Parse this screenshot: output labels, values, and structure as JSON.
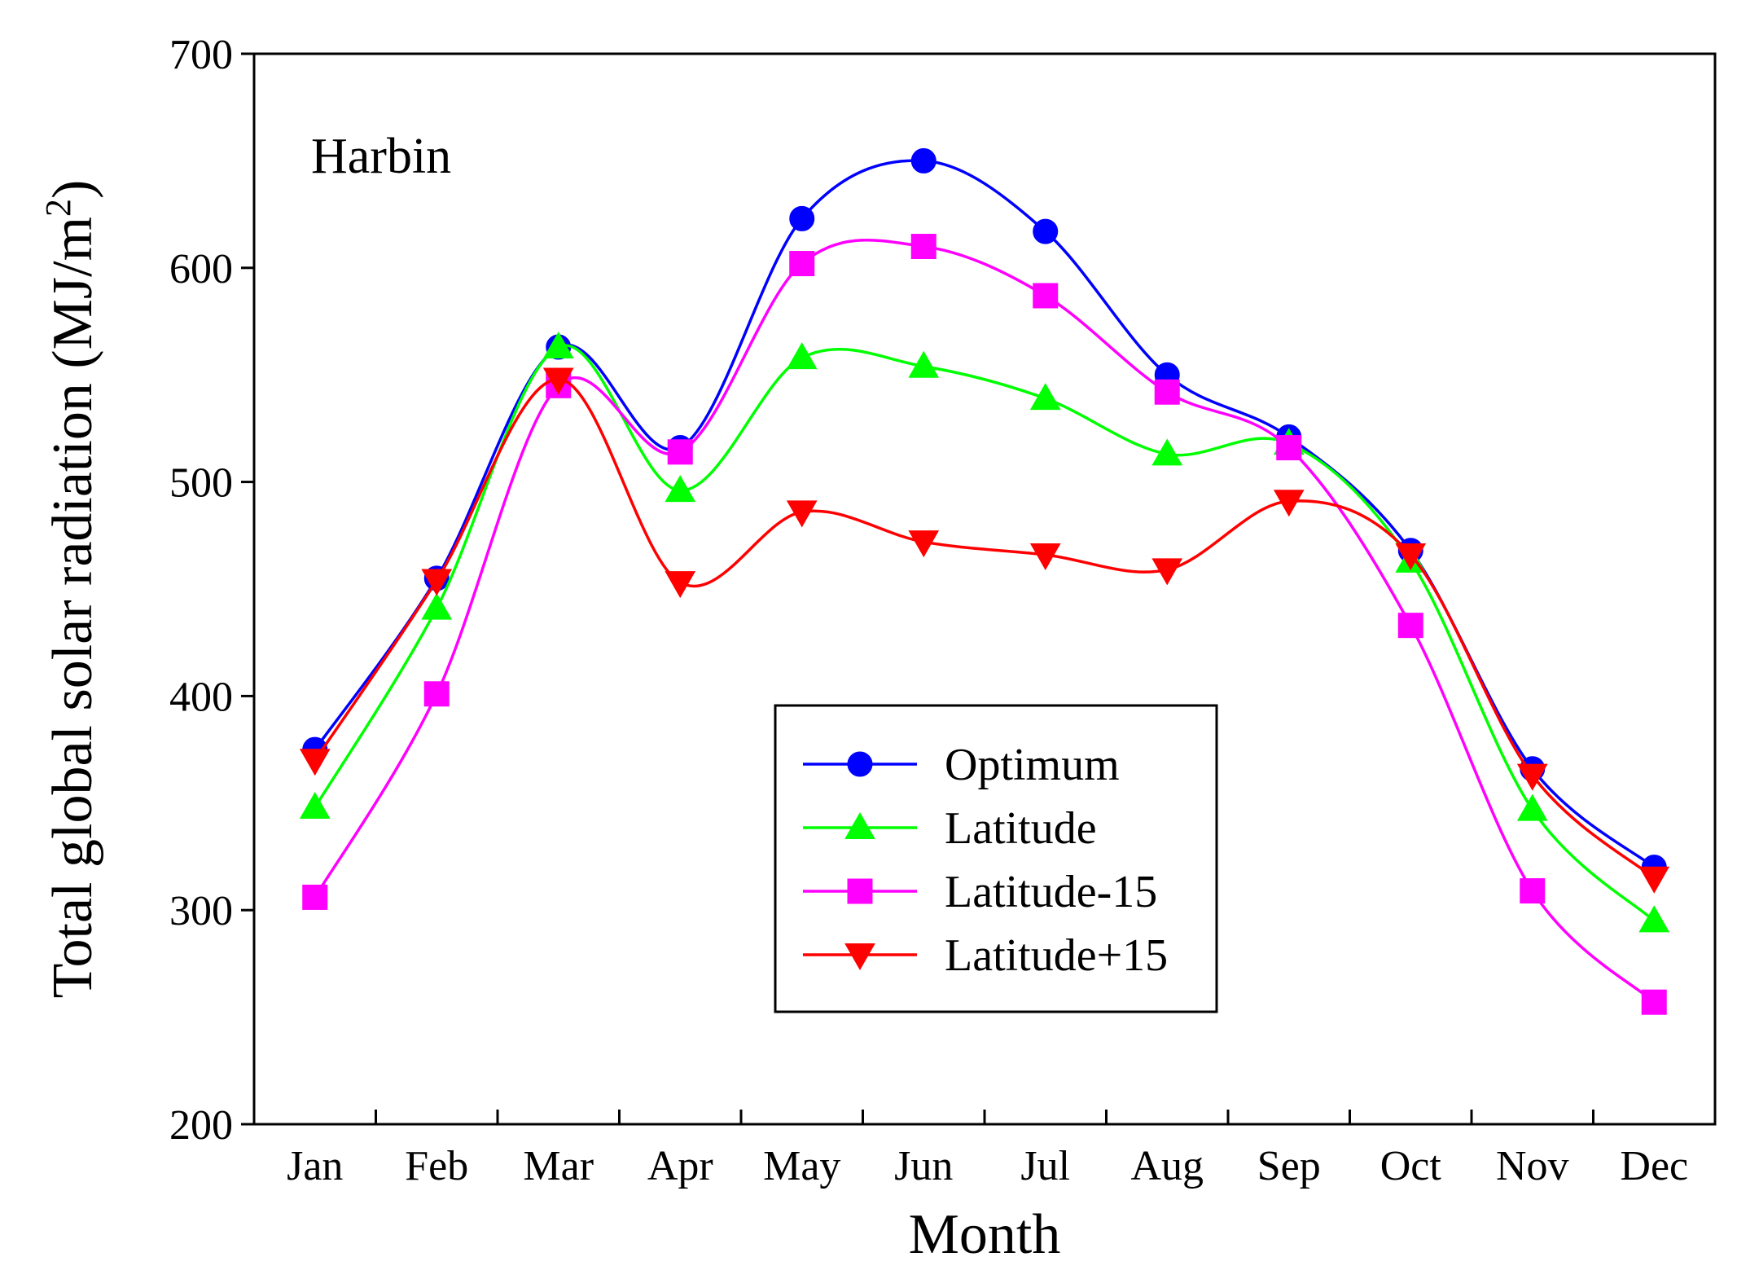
{
  "chart_data": {
    "type": "line",
    "title": "",
    "annotation": "Harbin",
    "xlabel": "Month",
    "ylabel_main": "Total global solar radiation (MJ/m",
    "ylabel_sup": "2",
    "ylabel_close": ")",
    "categories": [
      "Jan",
      "Feb",
      "Mar",
      "Apr",
      "May",
      "Jun",
      "Jul",
      "Aug",
      "Sep",
      "Oct",
      "Nov",
      "Dec"
    ],
    "ylim": [
      200,
      700
    ],
    "yticks": [
      200,
      300,
      400,
      500,
      600,
      700
    ],
    "grid": false,
    "legend_position": "center-right",
    "series": [
      {
        "name": "Optimum",
        "color": "#0000ff",
        "marker": "circle",
        "values": [
          375,
          455,
          563,
          516,
          623,
          650,
          617,
          550,
          521,
          468,
          366,
          320
        ]
      },
      {
        "name": "Latitude",
        "color": "#00ff00",
        "marker": "triangle-up",
        "values": [
          348,
          441,
          563,
          496,
          558,
          554,
          539,
          513,
          518,
          463,
          347,
          295
        ]
      },
      {
        "name": "Latitude-15",
        "color": "#ff00ff",
        "marker": "square",
        "values": [
          306,
          401,
          545,
          514,
          602,
          610,
          587,
          542,
          516,
          433,
          309,
          257
        ]
      },
      {
        "name": "Latitude+15",
        "color": "#ff0000",
        "marker": "triangle-down",
        "values": [
          370,
          454,
          548,
          453,
          486,
          472,
          466,
          459,
          491,
          466,
          363,
          315
        ]
      }
    ]
  }
}
